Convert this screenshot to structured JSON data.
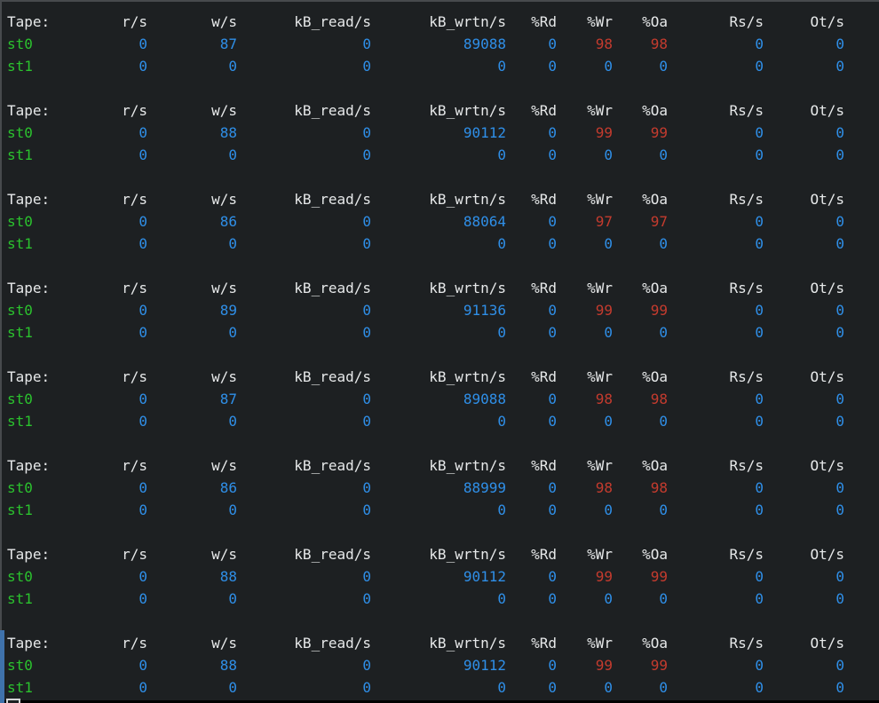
{
  "colors": {
    "background": "#1d2022",
    "header_text": "#e6e8e9",
    "device_green": "#2bc22e",
    "value_blue": "#2f8fe8",
    "value_red": "#c43b2e",
    "window_border": "#474a4d",
    "scroll_indicator_blue": "#3f72ab",
    "cursor_outline": "#d4d6d7",
    "bottom_edge": "#000000"
  },
  "table": {
    "columns": [
      "Tape:",
      "r/s",
      "w/s",
      "kB_read/s",
      "kB_wrtn/s",
      "%Rd",
      "%Wr",
      "%Oa",
      "Rs/s",
      "Ot/s"
    ],
    "blocks": [
      {
        "rows": [
          {
            "device": "st0",
            "values": [
              "0",
              "87",
              "0",
              "89088",
              "0",
              "98",
              "98",
              "0",
              "0"
            ],
            "red_indexes": [
              5,
              6
            ]
          },
          {
            "device": "st1",
            "values": [
              "0",
              "0",
              "0",
              "0",
              "0",
              "0",
              "0",
              "0",
              "0"
            ],
            "red_indexes": []
          }
        ]
      },
      {
        "rows": [
          {
            "device": "st0",
            "values": [
              "0",
              "88",
              "0",
              "90112",
              "0",
              "99",
              "99",
              "0",
              "0"
            ],
            "red_indexes": [
              5,
              6
            ]
          },
          {
            "device": "st1",
            "values": [
              "0",
              "0",
              "0",
              "0",
              "0",
              "0",
              "0",
              "0",
              "0"
            ],
            "red_indexes": []
          }
        ]
      },
      {
        "rows": [
          {
            "device": "st0",
            "values": [
              "0",
              "86",
              "0",
              "88064",
              "0",
              "97",
              "97",
              "0",
              "0"
            ],
            "red_indexes": [
              5,
              6
            ]
          },
          {
            "device": "st1",
            "values": [
              "0",
              "0",
              "0",
              "0",
              "0",
              "0",
              "0",
              "0",
              "0"
            ],
            "red_indexes": []
          }
        ]
      },
      {
        "rows": [
          {
            "device": "st0",
            "values": [
              "0",
              "89",
              "0",
              "91136",
              "0",
              "99",
              "99",
              "0",
              "0"
            ],
            "red_indexes": [
              5,
              6
            ]
          },
          {
            "device": "st1",
            "values": [
              "0",
              "0",
              "0",
              "0",
              "0",
              "0",
              "0",
              "0",
              "0"
            ],
            "red_indexes": []
          }
        ]
      },
      {
        "rows": [
          {
            "device": "st0",
            "values": [
              "0",
              "87",
              "0",
              "89088",
              "0",
              "98",
              "98",
              "0",
              "0"
            ],
            "red_indexes": [
              5,
              6
            ]
          },
          {
            "device": "st1",
            "values": [
              "0",
              "0",
              "0",
              "0",
              "0",
              "0",
              "0",
              "0",
              "0"
            ],
            "red_indexes": []
          }
        ]
      },
      {
        "rows": [
          {
            "device": "st0",
            "values": [
              "0",
              "86",
              "0",
              "88999",
              "0",
              "98",
              "98",
              "0",
              "0"
            ],
            "red_indexes": [
              5,
              6
            ]
          },
          {
            "device": "st1",
            "values": [
              "0",
              "0",
              "0",
              "0",
              "0",
              "0",
              "0",
              "0",
              "0"
            ],
            "red_indexes": []
          }
        ]
      },
      {
        "rows": [
          {
            "device": "st0",
            "values": [
              "0",
              "88",
              "0",
              "90112",
              "0",
              "99",
              "99",
              "0",
              "0"
            ],
            "red_indexes": [
              5,
              6
            ]
          },
          {
            "device": "st1",
            "values": [
              "0",
              "0",
              "0",
              "0",
              "0",
              "0",
              "0",
              "0",
              "0"
            ],
            "red_indexes": []
          }
        ]
      },
      {
        "rows": [
          {
            "device": "st0",
            "values": [
              "0",
              "88",
              "0",
              "90112",
              "0",
              "99",
              "99",
              "0",
              "0"
            ],
            "red_indexes": [
              5,
              6
            ]
          },
          {
            "device": "st1",
            "values": [
              "0",
              "0",
              "0",
              "0",
              "0",
              "0",
              "0",
              "0",
              "0"
            ],
            "red_indexes": []
          }
        ]
      }
    ]
  },
  "cursor": {
    "visible": true
  }
}
